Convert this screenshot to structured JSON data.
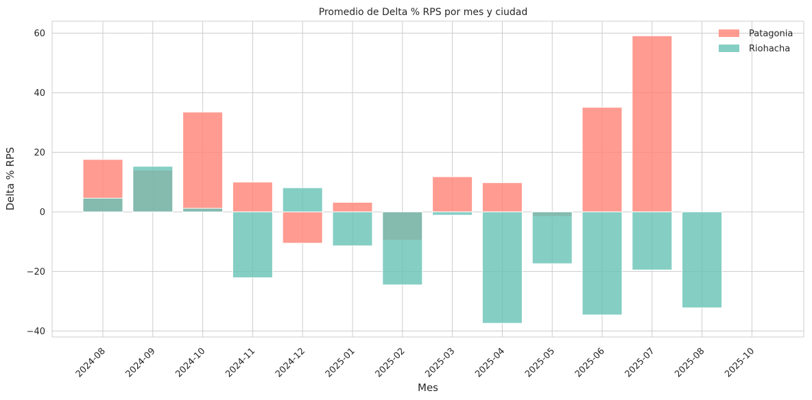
{
  "chart_data": {
    "type": "bar",
    "title": "Promedio de Delta % RPS por mes y ciudad",
    "xlabel": "Mes",
    "ylabel": "Delta % RPS",
    "categories": [
      "2024-08",
      "2024-09",
      "2024-10",
      "2024-11",
      "2024-12",
      "2025-01",
      "2025-02",
      "2025-03",
      "2025-04",
      "2025-05",
      "2025-06",
      "2025-07",
      "2025-08",
      "2025-10"
    ],
    "series": [
      {
        "name": "Patagonia",
        "color": "#ff8274",
        "values": [
          17.6,
          14.0,
          33.5,
          10.0,
          -10.5,
          3.2,
          -9.5,
          11.8,
          9.8,
          -1.5,
          35.1,
          59.1,
          null,
          0.0
        ]
      },
      {
        "name": "Riohacha",
        "color": "#66c2b5",
        "values": [
          4.6,
          15.3,
          1.2,
          -22.1,
          8.1,
          -11.4,
          -24.5,
          -1.1,
          -37.4,
          -17.4,
          -34.6,
          -19.5,
          -32.2,
          0.0
        ]
      }
    ],
    "ylim": [
      -42,
      64
    ],
    "yticks": [
      -40,
      -20,
      0,
      20,
      40,
      60
    ],
    "ytick_labels": [
      "−40",
      "−20",
      "0",
      "20",
      "40",
      "60"
    ],
    "grid": true,
    "legend_position": "top-right",
    "overlay": true,
    "alpha": 0.8
  }
}
